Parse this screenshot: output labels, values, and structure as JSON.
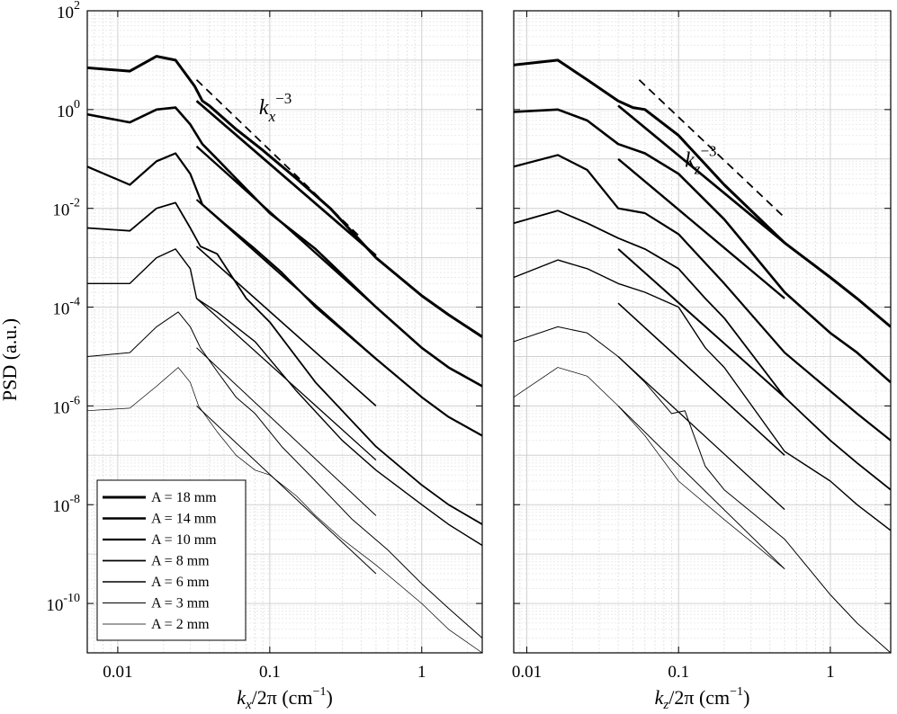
{
  "chart_data": [
    {
      "type": "line",
      "panel": "left",
      "xscale": "log",
      "yscale": "log",
      "xlabel": "k_x/2π (cm⁻¹)",
      "xlabel_var": "k",
      "xlabel_sub": "x",
      "xlabel_rest": "/2π (cm",
      "xlabel_sup": "−1",
      "xlabel_close": ")",
      "ylabel": "PSD (a.u.)",
      "xlim": [
        0.0063,
        2.5
      ],
      "ylim": [
        1e-11,
        100
      ],
      "grid": true,
      "x_ticks": [
        {
          "value": 0.01,
          "label": "0.01"
        },
        {
          "value": 0.1,
          "label": "0.1"
        },
        {
          "value": 1,
          "label": "1"
        }
      ],
      "y_ticks": [
        {
          "value": 100,
          "base": "10",
          "exp": "2"
        },
        {
          "value": 1,
          "base": "10",
          "exp": "0"
        },
        {
          "value": 0.01,
          "base": "10",
          "exp": "-2"
        },
        {
          "value": 0.0001,
          "base": "10",
          "exp": "-4"
        },
        {
          "value": 1e-06,
          "base": "10",
          "exp": "-6"
        },
        {
          "value": 1e-08,
          "base": "10",
          "exp": "-8"
        },
        {
          "value": 1e-10,
          "base": "10",
          "exp": "-10"
        }
      ],
      "annotation": {
        "base": "k",
        "sub": "x",
        "sup": "−3",
        "x": 0.085,
        "y": 0.8
      },
      "reference_line": {
        "x": [
          0.033,
          0.4
        ],
        "y": [
          4.0,
          0.0025
        ]
      },
      "legend": {
        "placement": "bottom-left",
        "entries": [
          "A = 18 mm",
          "A = 14 mm",
          "A = 10 mm",
          "A = 8 mm",
          "A = 6 mm",
          "A = 3 mm",
          "A = 2 mm"
        ]
      },
      "series": [
        {
          "x": [
            0.0063,
            0.012,
            0.018,
            0.024,
            0.032,
            0.036,
            0.04,
            0.06,
            0.09,
            0.15,
            0.25,
            0.5,
            1.0,
            1.5,
            2.5
          ],
          "y": [
            7,
            6,
            12,
            10,
            3,
            1.5,
            1.2,
            0.4,
            0.15,
            0.04,
            0.01,
            0.001,
            0.00017,
            7e-05,
            2.5e-05
          ]
        },
        {
          "x": [
            0.0063,
            0.012,
            0.018,
            0.024,
            0.03,
            0.036,
            0.045,
            0.06,
            0.1,
            0.2,
            0.5,
            1.0,
            1.5,
            2.5
          ],
          "y": [
            0.8,
            0.55,
            1.0,
            1.1,
            0.5,
            0.2,
            0.1,
            0.04,
            0.008,
            0.0015,
            0.0001,
            1.5e-05,
            6e-06,
            2.5e-06
          ]
        },
        {
          "x": [
            0.0063,
            0.012,
            0.018,
            0.024,
            0.03,
            0.036,
            0.05,
            0.08,
            0.12,
            0.2,
            0.5,
            1.0,
            1.5,
            2.5
          ],
          "y": [
            0.07,
            0.03,
            0.09,
            0.13,
            0.05,
            0.012,
            0.005,
            0.0015,
            0.0005,
            0.0001,
            9e-06,
            1.5e-06,
            6e-07,
            2.5e-07
          ]
        },
        {
          "x": [
            0.0063,
            0.012,
            0.018,
            0.024,
            0.03,
            0.035,
            0.045,
            0.07,
            0.1,
            0.2,
            0.5,
            1.0,
            1.5,
            2.5
          ],
          "y": [
            0.004,
            0.0035,
            0.01,
            0.013,
            0.004,
            0.0017,
            0.0012,
            0.00015,
            5e-05,
            3e-06,
            1.5e-07,
            2.5e-08,
            1e-08,
            4e-09
          ]
        },
        {
          "x": [
            0.0063,
            0.012,
            0.018,
            0.024,
            0.03,
            0.033,
            0.045,
            0.08,
            0.15,
            0.3,
            0.5,
            1.0,
            1.5,
            2.5
          ],
          "y": [
            0.0003,
            0.0003,
            0.001,
            0.0015,
            0.0006,
            0.00015,
            8e-05,
            2e-05,
            2e-06,
            2e-07,
            5e-08,
            1e-08,
            4e-09,
            1.5e-09
          ]
        },
        {
          "x": [
            0.0063,
            0.012,
            0.018,
            0.025,
            0.03,
            0.035,
            0.045,
            0.06,
            0.08,
            0.12,
            0.2,
            0.35,
            0.6,
            1.0,
            1.5,
            2.5
          ],
          "y": [
            1e-05,
            1.2e-05,
            4e-05,
            8e-05,
            4e-05,
            1.5e-05,
            5e-06,
            1.5e-06,
            7e-07,
            1.5e-07,
            3e-08,
            5e-09,
            1.2e-09,
            2.5e-10,
            8e-11,
            2e-11
          ]
        },
        {
          "x": [
            0.0063,
            0.012,
            0.018,
            0.025,
            0.03,
            0.034,
            0.045,
            0.06,
            0.08,
            0.1,
            0.15,
            0.2,
            0.3,
            0.5,
            1.0,
            1.5,
            2.5
          ],
          "y": [
            8e-07,
            9e-07,
            2.5e-06,
            6e-06,
            3e-06,
            1e-06,
            3e-07,
            1e-07,
            5e-08,
            4e-08,
            1.5e-08,
            6e-09,
            2e-09,
            6e-10,
            1e-10,
            3e-11,
            1e-11
          ]
        }
      ],
      "fit_segments": [
        {
          "x": [
            0.033,
            0.5
          ],
          "y": [
            1.5,
            0.0011
          ]
        },
        {
          "x": [
            0.033,
            0.5
          ],
          "y": [
            0.18,
            0.0001
          ]
        },
        {
          "x": [
            0.033,
            0.5
          ],
          "y": [
            0.015,
            9e-06
          ]
        },
        {
          "x": [
            0.033,
            0.5
          ],
          "y": [
            0.0017,
            1e-06
          ]
        },
        {
          "x": [
            0.033,
            0.5
          ],
          "y": [
            0.00015,
            8e-08
          ]
        },
        {
          "x": [
            0.033,
            0.5
          ],
          "y": [
            1.5e-05,
            6e-09
          ]
        },
        {
          "x": [
            0.033,
            0.5
          ],
          "y": [
            1e-06,
            4e-10
          ]
        }
      ]
    },
    {
      "type": "line",
      "panel": "right",
      "xscale": "log",
      "yscale": "log",
      "xlabel": "k_z/2π (cm⁻¹)",
      "xlabel_var": "k",
      "xlabel_sub": "z",
      "xlabel_rest": "/2π (cm",
      "xlabel_sup": "−1",
      "xlabel_close": ")",
      "xlim": [
        0.0082,
        2.5
      ],
      "ylim": [
        1e-11,
        100
      ],
      "grid": true,
      "x_ticks": [
        {
          "value": 0.01,
          "label": "0.01"
        },
        {
          "value": 0.1,
          "label": "0.1"
        },
        {
          "value": 1,
          "label": "1"
        }
      ],
      "annotation": {
        "base": "k",
        "sub": "z",
        "sup": "−3",
        "x": 0.11,
        "y": 0.07
      },
      "reference_line": {
        "x": [
          0.055,
          0.5
        ],
        "y": [
          4.0,
          0.0065
        ]
      },
      "series": [
        {
          "x": [
            0.0082,
            0.016,
            0.025,
            0.04,
            0.05,
            0.06,
            0.1,
            0.2,
            0.5,
            1.0,
            1.5,
            2.5
          ],
          "y": [
            8,
            10,
            4,
            1.5,
            1.1,
            1.0,
            0.3,
            0.03,
            0.002,
            0.0004,
            0.00015,
            4e-05
          ]
        },
        {
          "x": [
            0.0082,
            0.016,
            0.025,
            0.04,
            0.06,
            0.1,
            0.2,
            0.5,
            1.0,
            1.5,
            2.5
          ],
          "y": [
            0.9,
            1.0,
            0.6,
            0.2,
            0.13,
            0.05,
            0.006,
            0.0002,
            3e-05,
            1.2e-05,
            3e-06
          ]
        },
        {
          "x": [
            0.0082,
            0.016,
            0.025,
            0.04,
            0.06,
            0.1,
            0.2,
            0.5,
            1.0,
            1.5,
            2.5
          ],
          "y": [
            0.07,
            0.12,
            0.06,
            0.01,
            0.008,
            0.003,
            0.0003,
            1.2e-05,
            2e-06,
            7e-07,
            2e-07
          ]
        },
        {
          "x": [
            0.0082,
            0.016,
            0.025,
            0.04,
            0.06,
            0.1,
            0.15,
            0.2,
            0.5,
            1.0,
            1.5,
            2.5
          ],
          "y": [
            0.005,
            0.009,
            0.005,
            0.0025,
            0.0015,
            0.0006,
            0.00015,
            6e-05,
            1.5e-06,
            2e-07,
            7e-08,
            2e-08
          ]
        },
        {
          "x": [
            0.0082,
            0.016,
            0.025,
            0.04,
            0.06,
            0.1,
            0.15,
            0.2,
            0.5,
            1.0,
            1.5,
            2.5
          ],
          "y": [
            0.0004,
            0.0009,
            0.0006,
            0.0003,
            0.0002,
            0.0001,
            1.5e-05,
            6e-06,
            1.2e-07,
            3e-08,
            1e-08,
            3e-09
          ]
        },
        {
          "x": [
            0.0082,
            0.016,
            0.025,
            0.04,
            0.06,
            0.09,
            0.11,
            0.15,
            0.2,
            0.5,
            1.0,
            1.5,
            2.5
          ],
          "y": [
            2e-05,
            4e-05,
            3e-05,
            1e-05,
            3e-06,
            7e-07,
            8e-07,
            6e-08,
            2e-08,
            2e-09,
            1.5e-10,
            4e-11,
            1e-11
          ]
        },
        {
          "x": [
            0.0082,
            0.016,
            0.025,
            0.04,
            0.06,
            0.1,
            0.2,
            0.5
          ],
          "y": [
            1.5e-06,
            6e-06,
            4e-06,
            1e-06,
            2.5e-07,
            3e-08,
            5e-09,
            5e-10
          ]
        }
      ],
      "fit_segments": [
        {
          "x": [
            0.04,
            0.5
          ],
          "y": [
            1.2,
            0.002
          ]
        },
        {
          "x": [
            0.04,
            0.5
          ],
          "y": [
            0.1,
            0.00015
          ]
        },
        {
          "x": [
            0.04,
            0.5
          ],
          "y": [
            0.0015,
            1.5e-06
          ]
        },
        {
          "x": [
            0.04,
            0.5
          ],
          "y": [
            0.00012,
            1e-07
          ]
        },
        {
          "x": [
            0.04,
            0.5
          ],
          "y": [
            1e-05,
            8e-09
          ]
        },
        {
          "x": [
            0.04,
            0.5
          ],
          "y": [
            1e-06,
            5e-10
          ]
        }
      ]
    }
  ]
}
